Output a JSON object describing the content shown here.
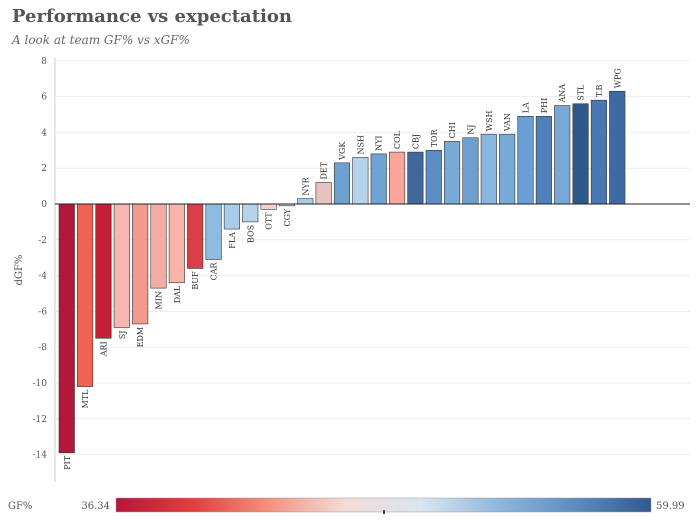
{
  "chart_data": {
    "type": "bar",
    "title": "Performance vs expectation",
    "subtitle": "A look at team GF% vs xGF%",
    "xlabel": "",
    "ylabel": "dGF%",
    "ylim": [
      -15,
      8
    ],
    "yticks": [
      8,
      6,
      4,
      2,
      0,
      -2,
      -4,
      -6,
      -8,
      -10,
      -12,
      -14
    ],
    "grid": true,
    "categories": [
      "PIT",
      "MTL",
      "ARI",
      "SJ",
      "EDM",
      "MIN",
      "DAL",
      "BUF",
      "CAR",
      "FLA",
      "BOS",
      "OTT",
      "CGY",
      "NYR",
      "DET",
      "VGK",
      "NSH",
      "NYI",
      "COL",
      "CBJ",
      "TOR",
      "CHI",
      "NJ",
      "WSH",
      "VAN",
      "LA",
      "PHI",
      "ANA",
      "STL",
      "T.B",
      "WPG"
    ],
    "values": [
      -13.9,
      -10.2,
      -7.5,
      -6.9,
      -6.7,
      -4.7,
      -4.4,
      -3.6,
      -3.1,
      -1.4,
      -1.0,
      -0.3,
      -0.1,
      0.3,
      1.2,
      2.3,
      2.6,
      2.8,
      2.9,
      2.9,
      3.0,
      3.5,
      3.7,
      3.9,
      3.9,
      4.9,
      4.9,
      5.5,
      5.6,
      5.8,
      6.3
    ],
    "colors": [
      "#b5173a",
      "#ef6352",
      "#c31f38",
      "#f5b7b1",
      "#f29a8c",
      "#f6aca2",
      "#f7b5aa",
      "#d93f46",
      "#8dbbe0",
      "#a9cde8",
      "#b4d3ea",
      "#f3d0cf",
      "#e0dedd",
      "#a8cbe8",
      "#e8c2c1",
      "#6fa0cf",
      "#b4d3ea",
      "#6ea3d3",
      "#f8a59a",
      "#40689b",
      "#5c8ec5",
      "#78aad8",
      "#6d9fd0",
      "#88b6de",
      "#78aad8",
      "#6a9ed4",
      "#517fba",
      "#79a8d6",
      "#2e5889",
      "#4977b3",
      "#3e6aa3"
    ],
    "legend": {
      "label": "GF%",
      "min": "36.34",
      "max": "59.99",
      "colors": [
        "#b5173a",
        "#e23e3e",
        "#f3927e",
        "#f2dcd8",
        "#d9e5f0",
        "#8fb7dc",
        "#5d8dc1",
        "#2f5a8f"
      ],
      "placement": "bottom"
    }
  }
}
